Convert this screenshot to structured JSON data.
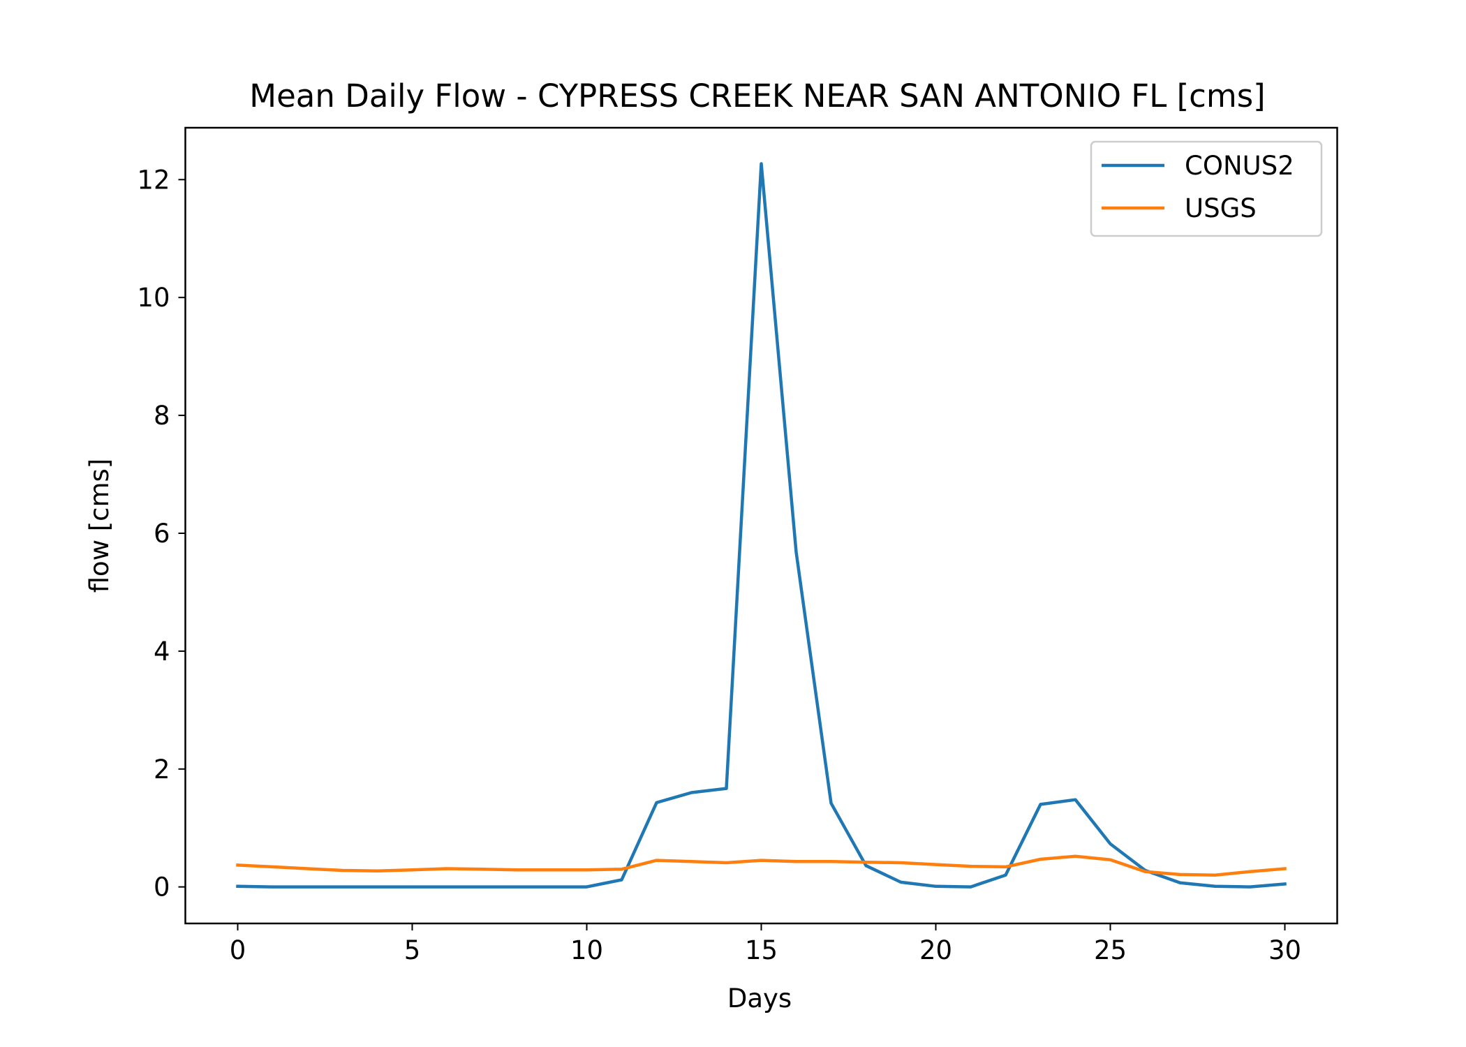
{
  "chart_data": {
    "type": "line",
    "title": "Mean Daily Flow - CYPRESS CREEK NEAR SAN ANTONIO FL [cms]",
    "xlabel": "Days",
    "ylabel": "flow [cms]",
    "xlim": [
      -1.5,
      31.5
    ],
    "ylim": [
      -0.62,
      12.88
    ],
    "xticks": [
      0,
      5,
      10,
      15,
      20,
      25,
      30
    ],
    "yticks": [
      0,
      2,
      4,
      6,
      8,
      10,
      12
    ],
    "grid": false,
    "legend": {
      "placement": "top-right"
    },
    "x": [
      0,
      1,
      2,
      3,
      4,
      5,
      6,
      7,
      8,
      9,
      10,
      11,
      12,
      13,
      14,
      15,
      16,
      17,
      18,
      19,
      20,
      21,
      22,
      23,
      24,
      25,
      26,
      27,
      28,
      29,
      30
    ],
    "series": [
      {
        "name": "CONUS2",
        "color": "#1f77b4",
        "values": [
          0.01,
          0.0,
          0.0,
          0.0,
          0.0,
          0.0,
          0.0,
          0.0,
          0.0,
          0.0,
          0.0,
          0.12,
          1.43,
          1.6,
          1.67,
          12.27,
          5.68,
          1.42,
          0.36,
          0.08,
          0.01,
          0.0,
          0.2,
          1.4,
          1.48,
          0.73,
          0.28,
          0.07,
          0.01,
          0.0,
          0.05
        ]
      },
      {
        "name": "USGS",
        "color": "#ff7f0e",
        "values": [
          0.37,
          0.34,
          0.31,
          0.28,
          0.27,
          0.29,
          0.31,
          0.3,
          0.29,
          0.29,
          0.29,
          0.3,
          0.45,
          0.43,
          0.41,
          0.45,
          0.43,
          0.43,
          0.42,
          0.41,
          0.38,
          0.35,
          0.34,
          0.47,
          0.52,
          0.46,
          0.26,
          0.21,
          0.2,
          0.26,
          0.31
        ]
      }
    ]
  }
}
